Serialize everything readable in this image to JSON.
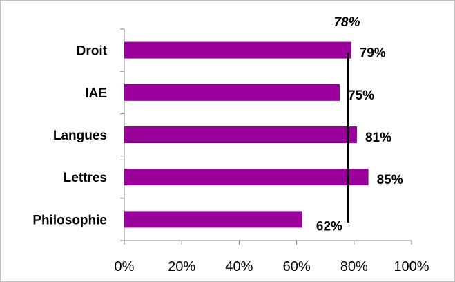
{
  "chart_data": {
    "type": "bar",
    "orientation": "horizontal",
    "categories": [
      "Droit",
      "IAE",
      "Langues",
      "Lettres",
      "Philosophie"
    ],
    "values": [
      79,
      75,
      81,
      85,
      62
    ],
    "data_labels": [
      "79%",
      "75%",
      "81%",
      "85%",
      "62%"
    ],
    "xlim": [
      0,
      100
    ],
    "x_ticks": [
      0,
      20,
      40,
      60,
      80,
      100
    ],
    "x_tick_labels": [
      "0%",
      "20%",
      "40%",
      "60%",
      "80%",
      "100%"
    ],
    "reference_line": {
      "value": 78,
      "label": "78%"
    },
    "title": "",
    "xlabel": "",
    "ylabel": "",
    "grid": false,
    "legend": "none",
    "bar_color": "#990099"
  }
}
